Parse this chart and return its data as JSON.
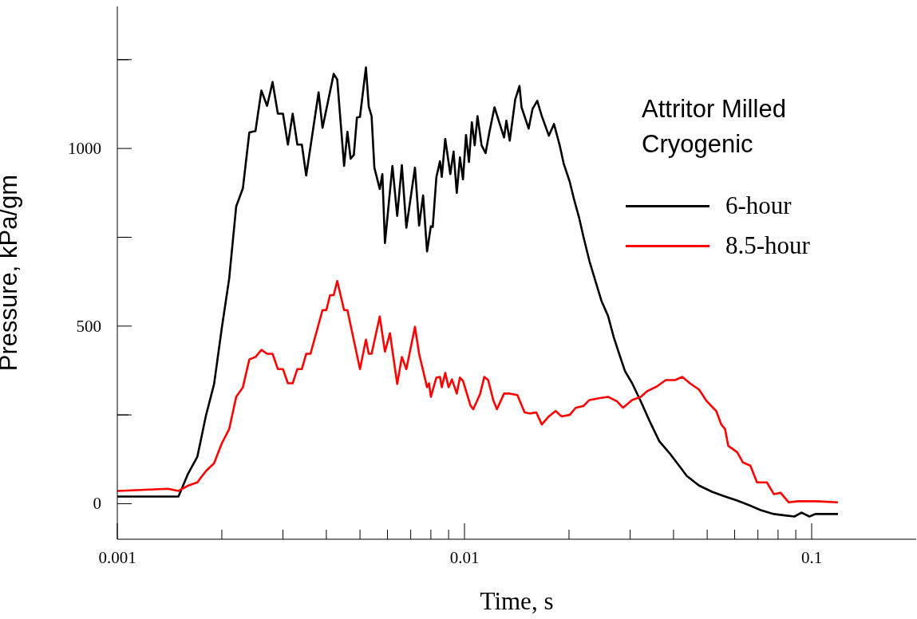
{
  "chart_data": {
    "type": "line",
    "xlabel": "Time, s",
    "ylabel": "Pressure, kPa/gm",
    "legend_title": "Attritor Milled Cryogenic",
    "legend": "top right",
    "log": "x",
    "xlim": [
      0.001,
      0.2
    ],
    "ylim": [
      -100,
      1400
    ],
    "xticks": [
      0.001,
      {
        "value": 0.002,
        "label": null
      },
      {
        "value": 0.003,
        "label": null
      },
      {
        "value": 0.004,
        "label": null
      },
      {
        "value": 0.005,
        "label": null
      },
      {
        "value": 0.006,
        "label": null
      },
      {
        "value": 0.007,
        "label": null
      },
      {
        "value": 0.008,
        "label": null
      },
      {
        "value": 0.009,
        "label": null
      },
      0.01,
      {
        "value": 0.02,
        "label": null
      },
      {
        "value": 0.03,
        "label": null
      },
      {
        "value": 0.04,
        "label": null
      },
      {
        "value": 0.05,
        "label": null
      },
      {
        "value": 0.06,
        "label": null
      },
      {
        "value": 0.07,
        "label": null
      },
      {
        "value": 0.08,
        "label": null
      },
      {
        "value": 0.09,
        "label": null
      },
      0.1
    ],
    "yticks": [
      0,
      {
        "value": 250,
        "label": null
      },
      500,
      {
        "value": 750,
        "label": null
      },
      1000,
      {
        "value": 1250,
        "label": null
      }
    ],
    "series": [
      {
        "name": "6-hour",
        "color": "#000000",
        "x": [
          0.001,
          0.0015,
          0.0016,
          0.0017,
          0.0018,
          0.0019,
          0.002,
          0.0021,
          0.0022,
          0.0023,
          0.0024,
          0.0025,
          0.0026,
          0.0027,
          0.0028,
          0.0029,
          0.003,
          0.0031,
          0.0032,
          0.0033,
          0.0034,
          0.0035,
          0.0038,
          0.0039,
          0.0042,
          0.0043,
          0.0045,
          0.0046,
          0.0047,
          0.0048,
          0.0049,
          0.005,
          0.0052,
          0.0053,
          0.0054,
          0.0055,
          0.0057,
          0.0058,
          0.0059,
          0.0062,
          0.0064,
          0.0066,
          0.0068,
          0.0072,
          0.0074,
          0.0076,
          0.0078,
          0.008,
          0.0081,
          0.0083,
          0.0085,
          0.0086,
          0.0088,
          0.0091,
          0.0093,
          0.0095,
          0.0097,
          0.0099,
          0.0101,
          0.0103,
          0.0105,
          0.0107,
          0.0109,
          0.0112,
          0.0115,
          0.0118,
          0.0122,
          0.0125,
          0.013,
          0.0132,
          0.0135,
          0.014,
          0.0144,
          0.0146,
          0.0153,
          0.0157,
          0.0162,
          0.0167,
          0.0175,
          0.0181,
          0.0188,
          0.0193,
          0.0201,
          0.0207,
          0.0214,
          0.022,
          0.0229,
          0.0239,
          0.0248,
          0.0259,
          0.0269,
          0.028,
          0.029,
          0.0304,
          0.0322,
          0.0343,
          0.0364,
          0.0389,
          0.0415,
          0.0437,
          0.0474,
          0.0518,
          0.0557,
          0.061,
          0.066,
          0.0713,
          0.0778,
          0.0837,
          0.0892,
          0.0935,
          0.0985,
          0.1025,
          0.111,
          0.119
        ],
        "values": [
          20,
          20,
          85,
          132,
          248,
          337,
          495,
          634,
          837,
          888,
          1045,
          1049,
          1163,
          1120,
          1187,
          1098,
          1098,
          1011,
          1098,
          1011,
          1011,
          924,
          1158,
          1058,
          1210,
          1194,
          951,
          1047,
          971,
          982,
          1087,
          1089,
          1228,
          1118,
          1091,
          946,
          886,
          928,
          734,
          951,
          810,
          953,
          777,
          946,
          783,
          868,
          710,
          781,
          779,
          920,
          964,
          920,
          1027,
          928,
          991,
          875,
          975,
          913,
          1038,
          962,
          1074,
          1009,
          1091,
          1009,
          987,
          1047,
          1116,
          1083,
          1031,
          1078,
          1022,
          1138,
          1176,
          1116,
          1056,
          1111,
          1134,
          1091,
          1036,
          1069,
          1009,
          958,
          906,
          855,
          804,
          752,
          683,
          623,
          571,
          529,
          469,
          417,
          373,
          339,
          288,
          228,
          176,
          143,
          107,
          78,
          51,
          33,
          22,
          9,
          -4,
          -18,
          -29,
          -33,
          -36,
          -25,
          -36,
          -29,
          -29,
          -29
        ]
      },
      {
        "name": "8.5-hour",
        "color": "#ff0000",
        "x": [
          0.001,
          0.0014,
          0.0015,
          0.0016,
          0.0017,
          0.0018,
          0.0019,
          0.002,
          0.0021,
          0.0022,
          0.0023,
          0.0024,
          0.0025,
          0.0026,
          0.0027,
          0.0028,
          0.0029,
          0.003,
          0.0031,
          0.0032,
          0.0033,
          0.0034,
          0.0035,
          0.0036,
          0.0039,
          0.004,
          0.0041,
          0.0042,
          0.0043,
          0.0045,
          0.0046,
          0.005,
          0.0052,
          0.0053,
          0.0054,
          0.0057,
          0.0059,
          0.0061,
          0.0064,
          0.0066,
          0.0068,
          0.0072,
          0.0074,
          0.0078,
          0.0079,
          0.008,
          0.0083,
          0.0085,
          0.0086,
          0.0088,
          0.009,
          0.0092,
          0.0095,
          0.0097,
          0.0099,
          0.0104,
          0.0106,
          0.0111,
          0.0114,
          0.0117,
          0.0121,
          0.0124,
          0.013,
          0.0135,
          0.0142,
          0.0149,
          0.0154,
          0.0161,
          0.0167,
          0.0175,
          0.0183,
          0.019,
          0.0201,
          0.0209,
          0.022,
          0.0229,
          0.0244,
          0.0259,
          0.0275,
          0.0286,
          0.0304,
          0.0322,
          0.0336,
          0.0358,
          0.038,
          0.0404,
          0.0424,
          0.0446,
          0.0474,
          0.0499,
          0.0531,
          0.0549,
          0.0563,
          0.0575,
          0.061,
          0.0634,
          0.0666,
          0.0696,
          0.0743,
          0.0778,
          0.0813,
          0.0858,
          0.0913,
          0.1025,
          0.119
        ],
        "values": [
          36,
          42,
          36,
          51,
          60,
          92,
          114,
          170,
          210,
          301,
          328,
          406,
          413,
          433,
          422,
          422,
          379,
          379,
          339,
          339,
          379,
          379,
          422,
          422,
          545,
          545,
          587,
          587,
          627,
          545,
          545,
          379,
          462,
          422,
          422,
          527,
          428,
          480,
          337,
          413,
          379,
          498,
          422,
          328,
          339,
          301,
          355,
          357,
          328,
          368,
          328,
          350,
          310,
          355,
          346,
          277,
          266,
          310,
          357,
          348,
          292,
          266,
          310,
          310,
          306,
          257,
          254,
          257,
          223,
          246,
          261,
          246,
          250,
          270,
          275,
          292,
          297,
          301,
          288,
          270,
          292,
          301,
          317,
          330,
          348,
          348,
          357,
          339,
          321,
          288,
          261,
          223,
          210,
          163,
          145,
          116,
          107,
          60,
          60,
          27,
          31,
          4,
          7,
          7,
          4
        ]
      }
    ]
  }
}
